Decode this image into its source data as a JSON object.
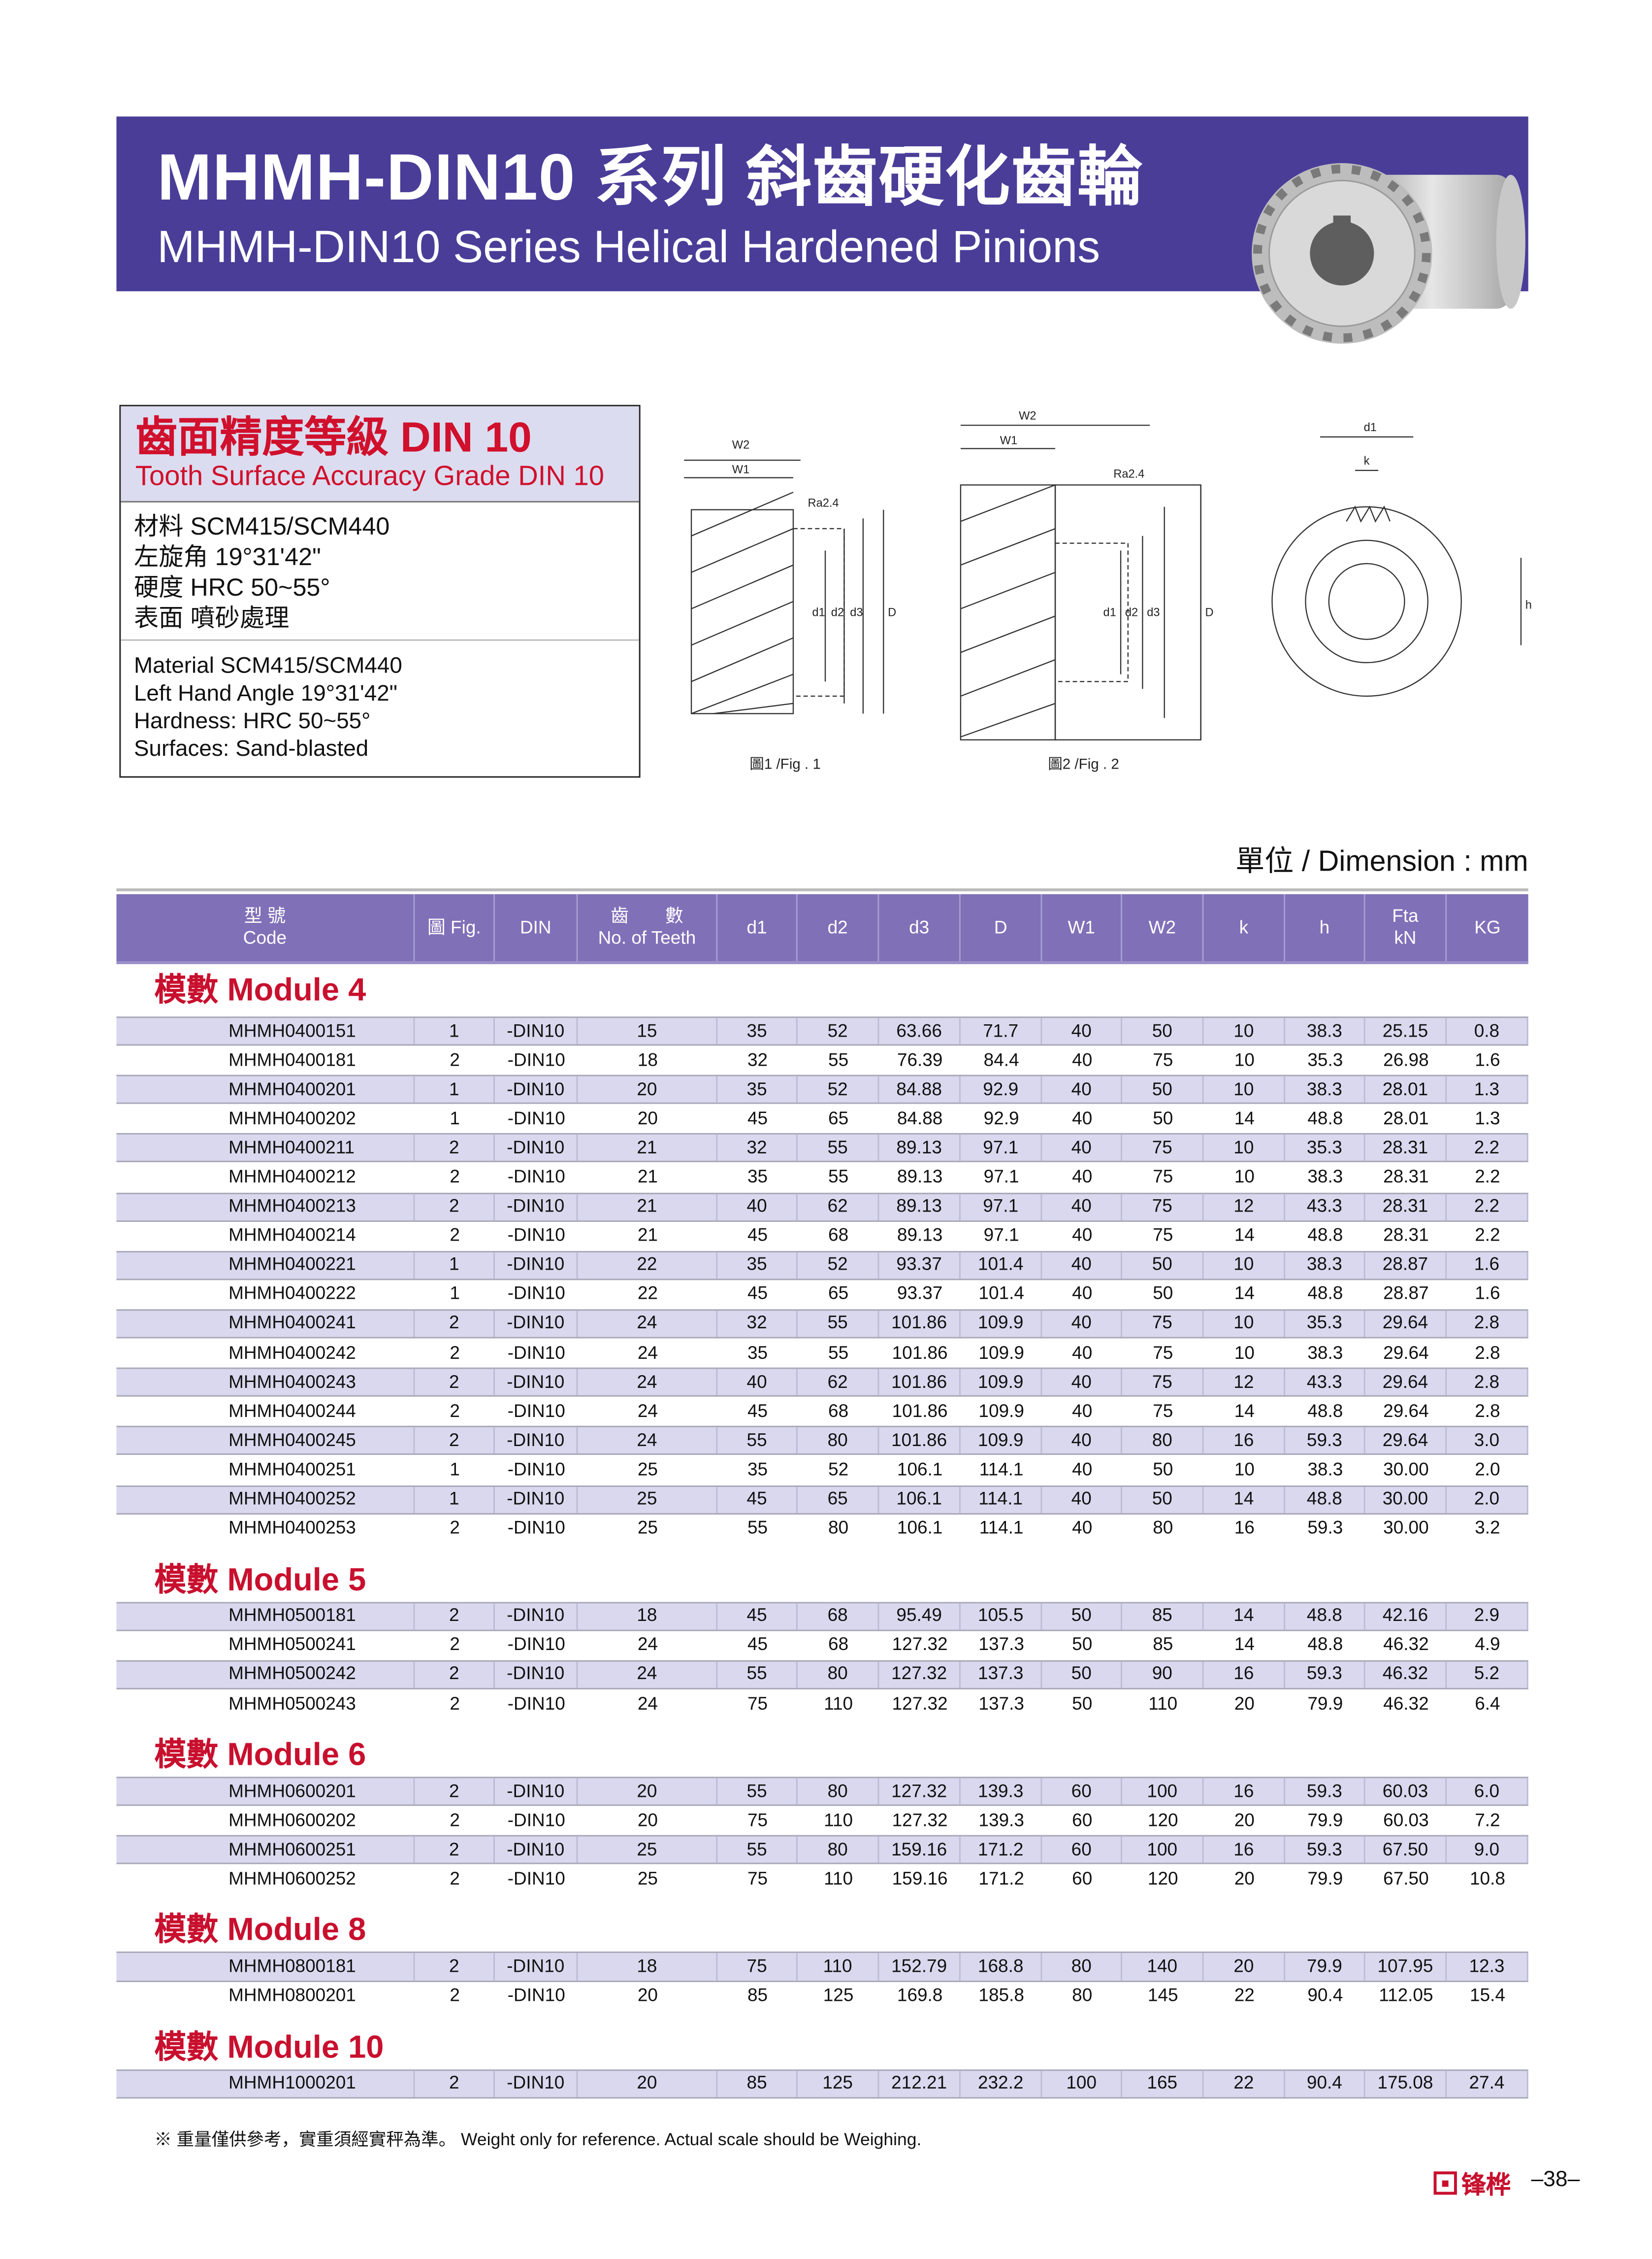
{
  "header": {
    "title_zh": "MHMH-DIN10 系列 斜齒硬化齒輪",
    "title_en": "MHMH-DIN10 Series Helical Hardened Pinions",
    "banner_color": "#4a3d98"
  },
  "spec": {
    "title_zh": "齒面精度等級 DIN 10",
    "title_en": "Tooth Surface Accuracy Grade DIN 10",
    "lines_zh": [
      "材料 SCM415/SCM440",
      "左旋角 19°31'42\"",
      "硬度 HRC 50~55°",
      "表面 噴砂處理"
    ],
    "lines_en": [
      "Material SCM415/SCM440",
      "Left Hand Angle 19°31'42\"",
      "Hardness: HRC 50~55°",
      "Surfaces: Sand-blasted"
    ]
  },
  "figures": {
    "fig1_caption": "圖1 /Fig . 1",
    "fig2_caption": "圖2 /Fig . 2",
    "labels": {
      "w2": "W2",
      "w1": "W1",
      "ra": "Ra2.4",
      "d1": "d1",
      "d2": "d2",
      "d3": "d3",
      "D": "D",
      "k": "k",
      "h": "h"
    }
  },
  "unit": "單位 / Dimension : mm",
  "table": {
    "header_color": "#8070b8",
    "columns": [
      {
        "zh": "型 號",
        "en": "Code"
      },
      {
        "zh": "",
        "en": "圖 Fig."
      },
      {
        "zh": "",
        "en": "DIN"
      },
      {
        "zh": "齒　　數",
        "en": "No. of Teeth"
      },
      {
        "zh": "",
        "en": "d1"
      },
      {
        "zh": "",
        "en": "d2"
      },
      {
        "zh": "",
        "en": "d3"
      },
      {
        "zh": "",
        "en": "D"
      },
      {
        "zh": "",
        "en": "W1"
      },
      {
        "zh": "",
        "en": "W2"
      },
      {
        "zh": "",
        "en": "k"
      },
      {
        "zh": "",
        "en": "h"
      },
      {
        "zh": "Fta",
        "en": "kN"
      },
      {
        "zh": "",
        "en": "KG"
      }
    ],
    "modules": [
      {
        "title": "模數 Module  4",
        "rows": [
          [
            "MHMH0400151",
            "1",
            "-DIN10",
            "15",
            "35",
            "52",
            "63.66",
            "71.7",
            "40",
            "50",
            "10",
            "38.3",
            "25.15",
            "0.8"
          ],
          [
            "MHMH0400181",
            "2",
            "-DIN10",
            "18",
            "32",
            "55",
            "76.39",
            "84.4",
            "40",
            "75",
            "10",
            "35.3",
            "26.98",
            "1.6"
          ],
          [
            "MHMH0400201",
            "1",
            "-DIN10",
            "20",
            "35",
            "52",
            "84.88",
            "92.9",
            "40",
            "50",
            "10",
            "38.3",
            "28.01",
            "1.3"
          ],
          [
            "MHMH0400202",
            "1",
            "-DIN10",
            "20",
            "45",
            "65",
            "84.88",
            "92.9",
            "40",
            "50",
            "14",
            "48.8",
            "28.01",
            "1.3"
          ],
          [
            "MHMH0400211",
            "2",
            "-DIN10",
            "21",
            "32",
            "55",
            "89.13",
            "97.1",
            "40",
            "75",
            "10",
            "35.3",
            "28.31",
            "2.2"
          ],
          [
            "MHMH0400212",
            "2",
            "-DIN10",
            "21",
            "35",
            "55",
            "89.13",
            "97.1",
            "40",
            "75",
            "10",
            "38.3",
            "28.31",
            "2.2"
          ],
          [
            "MHMH0400213",
            "2",
            "-DIN10",
            "21",
            "40",
            "62",
            "89.13",
            "97.1",
            "40",
            "75",
            "12",
            "43.3",
            "28.31",
            "2.2"
          ],
          [
            "MHMH0400214",
            "2",
            "-DIN10",
            "21",
            "45",
            "68",
            "89.13",
            "97.1",
            "40",
            "75",
            "14",
            "48.8",
            "28.31",
            "2.2"
          ],
          [
            "MHMH0400221",
            "1",
            "-DIN10",
            "22",
            "35",
            "52",
            "93.37",
            "101.4",
            "40",
            "50",
            "10",
            "38.3",
            "28.87",
            "1.6"
          ],
          [
            "MHMH0400222",
            "1",
            "-DIN10",
            "22",
            "45",
            "65",
            "93.37",
            "101.4",
            "40",
            "50",
            "14",
            "48.8",
            "28.87",
            "1.6"
          ],
          [
            "MHMH0400241",
            "2",
            "-DIN10",
            "24",
            "32",
            "55",
            "101.86",
            "109.9",
            "40",
            "75",
            "10",
            "35.3",
            "29.64",
            "2.8"
          ],
          [
            "MHMH0400242",
            "2",
            "-DIN10",
            "24",
            "35",
            "55",
            "101.86",
            "109.9",
            "40",
            "75",
            "10",
            "38.3",
            "29.64",
            "2.8"
          ],
          [
            "MHMH0400243",
            "2",
            "-DIN10",
            "24",
            "40",
            "62",
            "101.86",
            "109.9",
            "40",
            "75",
            "12",
            "43.3",
            "29.64",
            "2.8"
          ],
          [
            "MHMH0400244",
            "2",
            "-DIN10",
            "24",
            "45",
            "68",
            "101.86",
            "109.9",
            "40",
            "75",
            "14",
            "48.8",
            "29.64",
            "2.8"
          ],
          [
            "MHMH0400245",
            "2",
            "-DIN10",
            "24",
            "55",
            "80",
            "101.86",
            "109.9",
            "40",
            "80",
            "16",
            "59.3",
            "29.64",
            "3.0"
          ],
          [
            "MHMH0400251",
            "1",
            "-DIN10",
            "25",
            "35",
            "52",
            "106.1",
            "114.1",
            "40",
            "50",
            "10",
            "38.3",
            "30.00",
            "2.0"
          ],
          [
            "MHMH0400252",
            "1",
            "-DIN10",
            "25",
            "45",
            "65",
            "106.1",
            "114.1",
            "40",
            "50",
            "14",
            "48.8",
            "30.00",
            "2.0"
          ],
          [
            "MHMH0400253",
            "2",
            "-DIN10",
            "25",
            "55",
            "80",
            "106.1",
            "114.1",
            "40",
            "80",
            "16",
            "59.3",
            "30.00",
            "3.2"
          ]
        ]
      },
      {
        "title": "模數 Module  5",
        "rows": [
          [
            "MHMH0500181",
            "2",
            "-DIN10",
            "18",
            "45",
            "68",
            "95.49",
            "105.5",
            "50",
            "85",
            "14",
            "48.8",
            "42.16",
            "2.9"
          ],
          [
            "MHMH0500241",
            "2",
            "-DIN10",
            "24",
            "45",
            "68",
            "127.32",
            "137.3",
            "50",
            "85",
            "14",
            "48.8",
            "46.32",
            "4.9"
          ],
          [
            "MHMH0500242",
            "2",
            "-DIN10",
            "24",
            "55",
            "80",
            "127.32",
            "137.3",
            "50",
            "90",
            "16",
            "59.3",
            "46.32",
            "5.2"
          ],
          [
            "MHMH0500243",
            "2",
            "-DIN10",
            "24",
            "75",
            "110",
            "127.32",
            "137.3",
            "50",
            "110",
            "20",
            "79.9",
            "46.32",
            "6.4"
          ]
        ]
      },
      {
        "title": "模數 Module  6",
        "rows": [
          [
            "MHMH0600201",
            "2",
            "-DIN10",
            "20",
            "55",
            "80",
            "127.32",
            "139.3",
            "60",
            "100",
            "16",
            "59.3",
            "60.03",
            "6.0"
          ],
          [
            "MHMH0600202",
            "2",
            "-DIN10",
            "20",
            "75",
            "110",
            "127.32",
            "139.3",
            "60",
            "120",
            "20",
            "79.9",
            "60.03",
            "7.2"
          ],
          [
            "MHMH0600251",
            "2",
            "-DIN10",
            "25",
            "55",
            "80",
            "159.16",
            "171.2",
            "60",
            "100",
            "16",
            "59.3",
            "67.50",
            "9.0"
          ],
          [
            "MHMH0600252",
            "2",
            "-DIN10",
            "25",
            "75",
            "110",
            "159.16",
            "171.2",
            "60",
            "120",
            "20",
            "79.9",
            "67.50",
            "10.8"
          ]
        ]
      },
      {
        "title": "模數 Module  8",
        "rows": [
          [
            "MHMH0800181",
            "2",
            "-DIN10",
            "18",
            "75",
            "110",
            "152.79",
            "168.8",
            "80",
            "140",
            "20",
            "79.9",
            "107.95",
            "12.3"
          ],
          [
            "MHMH0800201",
            "2",
            "-DIN10",
            "20",
            "85",
            "125",
            "169.8",
            "185.8",
            "80",
            "145",
            "22",
            "90.4",
            "112.05",
            "15.4"
          ]
        ]
      },
      {
        "title": "模數 Module  10",
        "rows": [
          [
            "MHMH1000201",
            "2",
            "-DIN10",
            "20",
            "85",
            "125",
            "212.21",
            "232.2",
            "100",
            "165",
            "22",
            "90.4",
            "175.08",
            "27.4"
          ]
        ]
      }
    ]
  },
  "footnote": "※ 重量僅供參考，實重須經實秤為準。 Weight only for reference. Actual scale should be Weighing.",
  "footer": {
    "brand": "锋桦",
    "page_number": "–38–",
    "brand_color": "#c8102e"
  }
}
